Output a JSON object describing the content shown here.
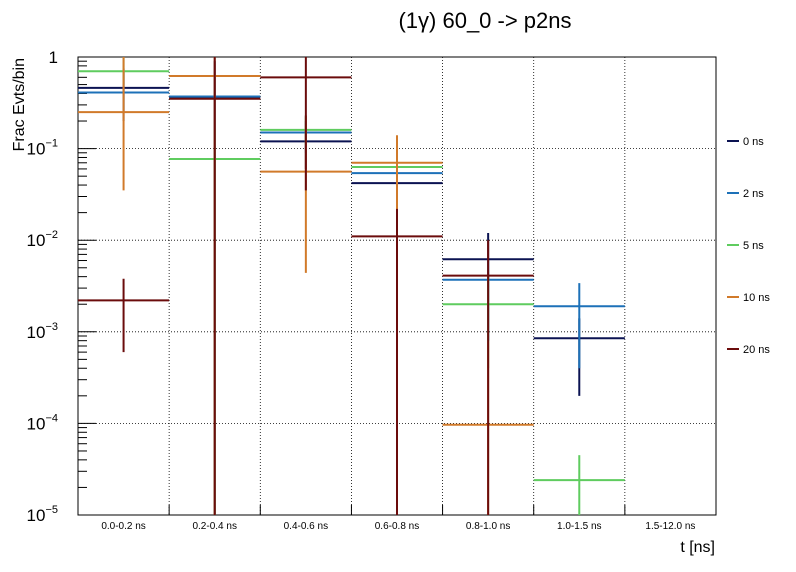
{
  "chart_data": {
    "type": "step-errorbar",
    "title": "(1γ) 60_0 -> p2ns",
    "xlabel": "t [ns]",
    "ylabel": "Frac Evts/bin",
    "yscale": "log",
    "ylim": [
      1e-05,
      1
    ],
    "grid": true,
    "legend_position": "right",
    "categories": [
      "0.0-0.2 ns",
      "0.2-0.4 ns",
      "0.4-0.6 ns",
      "0.6-0.8 ns",
      "0.8-1.0 ns",
      "1.0-1.5 ns",
      "1.5-12.0 ns"
    ],
    "y_tick_labels": [
      {
        "value": 1e-05,
        "base": "10",
        "exp": "−5"
      },
      {
        "value": 0.0001,
        "base": "10",
        "exp": "−4"
      },
      {
        "value": 0.001,
        "base": "10",
        "exp": "−3"
      },
      {
        "value": 0.01,
        "base": "10",
        "exp": "−2"
      },
      {
        "value": 0.1,
        "base": "10",
        "exp": "−1"
      },
      {
        "value": 1,
        "base": "1",
        "exp": ""
      }
    ],
    "series": [
      {
        "name": "0 ns",
        "color": "#0b1352",
        "values": [
          0.46,
          0.36,
          0.12,
          0.042,
          0.0062,
          0.00085,
          null
        ],
        "err_low": [
          0.2,
          1e-05,
          0.06,
          0.016,
          0.0008,
          0.0002,
          null
        ],
        "err_high": [
          0.75,
          0.9,
          0.2,
          0.07,
          0.012,
          0.0014,
          null
        ]
      },
      {
        "name": "2 ns",
        "color": "#1d71b8",
        "values": [
          0.41,
          0.37,
          0.15,
          0.054,
          0.0037,
          0.0019,
          null
        ],
        "err_low": [
          0.25,
          1e-05,
          0.09,
          0.03,
          0.0008,
          0.0004,
          null
        ],
        "err_high": [
          0.7,
          0.9,
          0.23,
          0.08,
          0.006,
          0.0034,
          null
        ]
      },
      {
        "name": "5 ns",
        "color": "#5fcc5f",
        "values": [
          0.7,
          0.077,
          0.16,
          0.063,
          0.002,
          2.4e-05,
          null
        ],
        "err_low": [
          0.5,
          1e-05,
          0.11,
          0.04,
          0.0004,
          1e-05,
          null
        ],
        "err_high": [
          1.0,
          0.16,
          0.22,
          0.09,
          0.004,
          4.5e-05,
          null
        ]
      },
      {
        "name": "10 ns",
        "color": "#d17a2a",
        "values": [
          0.25,
          0.62,
          0.056,
          0.07,
          9.68e-05,
          null,
          null
        ],
        "err_low": [
          0.035,
          1e-05,
          0.0044,
          1e-05,
          1e-05,
          null,
          null
        ],
        "err_high": [
          1.0,
          1.0,
          0.23,
          0.14,
          0.0008,
          null,
          null
        ]
      },
      {
        "name": "20 ns",
        "color": "#6b0c0c",
        "values": [
          0.0022,
          0.35,
          0.6,
          0.011,
          0.0041,
          null,
          null
        ],
        "err_low": [
          0.0006,
          1e-05,
          0.035,
          1e-05,
          1e-05,
          null,
          null
        ],
        "err_high": [
          0.0038,
          1.0,
          1.0,
          0.022,
          0.01,
          null,
          null
        ]
      }
    ]
  }
}
